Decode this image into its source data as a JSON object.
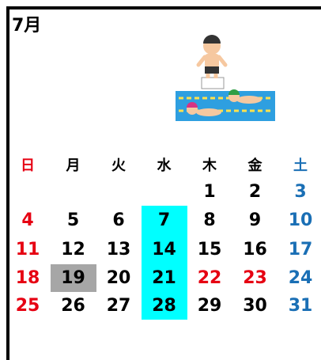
{
  "header": {
    "title": "7月"
  },
  "weekdays": [
    {
      "text": "日",
      "color": "#e60012"
    },
    {
      "text": "月",
      "color": "#000000"
    },
    {
      "text": "火",
      "color": "#000000"
    },
    {
      "text": "水",
      "color": "#000000"
    },
    {
      "text": "木",
      "color": "#000000"
    },
    {
      "text": "金",
      "color": "#000000"
    },
    {
      "text": "土",
      "color": "#1a6fb5"
    }
  ],
  "weeks": [
    [
      null,
      null,
      null,
      null,
      {
        "text": "1",
        "color": "#000000"
      },
      {
        "text": "2",
        "color": "#000000"
      },
      {
        "text": "3",
        "color": "#1a6fb5"
      }
    ],
    [
      {
        "text": "4",
        "color": "#e60012"
      },
      {
        "text": "5",
        "color": "#000000"
      },
      {
        "text": "6",
        "color": "#000000"
      },
      {
        "text": "7",
        "color": "#000000",
        "background": "#00ffff"
      },
      {
        "text": "8",
        "color": "#000000"
      },
      {
        "text": "9",
        "color": "#000000"
      },
      {
        "text": "10",
        "color": "#1a6fb5"
      }
    ],
    [
      {
        "text": "11",
        "color": "#e60012"
      },
      {
        "text": "12",
        "color": "#000000"
      },
      {
        "text": "13",
        "color": "#000000"
      },
      {
        "text": "14",
        "color": "#000000",
        "background": "#00ffff"
      },
      {
        "text": "15",
        "color": "#000000"
      },
      {
        "text": "16",
        "color": "#000000"
      },
      {
        "text": "17",
        "color": "#1a6fb5"
      }
    ],
    [
      {
        "text": "18",
        "color": "#e60012"
      },
      {
        "text": "19",
        "color": "#000000",
        "background": "#a6a6a6"
      },
      {
        "text": "20",
        "color": "#000000"
      },
      {
        "text": "21",
        "color": "#000000",
        "background": "#00ffff"
      },
      {
        "text": "22",
        "color": "#e60012"
      },
      {
        "text": "23",
        "color": "#e60012"
      },
      {
        "text": "24",
        "color": "#1a6fb5"
      }
    ],
    [
      {
        "text": "25",
        "color": "#e60012"
      },
      {
        "text": "26",
        "color": "#000000"
      },
      {
        "text": "27",
        "color": "#000000"
      },
      {
        "text": "28",
        "color": "#000000",
        "background": "#00ffff"
      },
      {
        "text": "29",
        "color": "#000000"
      },
      {
        "text": "30",
        "color": "#000000"
      },
      {
        "text": "31",
        "color": "#1a6fb5"
      }
    ]
  ]
}
